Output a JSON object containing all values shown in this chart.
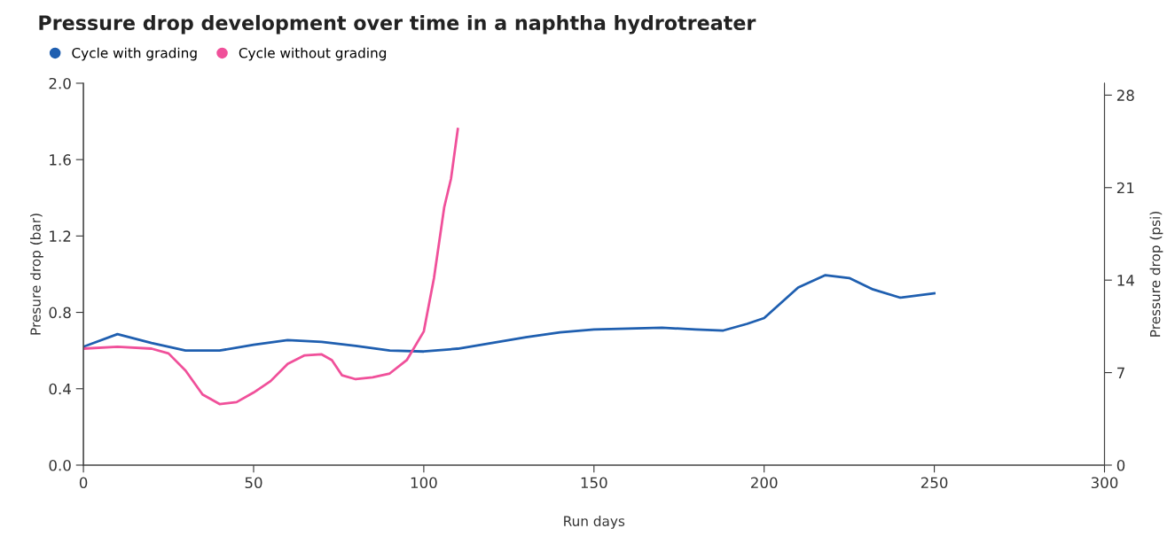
{
  "chart_data": {
    "type": "line",
    "title": "Pressure drop development over time in a naphtha hydrotreater",
    "xlabel": "Run days",
    "ylabel": "Presure drop (bar)",
    "y2label": "Pressure drop (psi)",
    "xlim": [
      0,
      300
    ],
    "xticks": [
      0,
      50,
      100,
      150,
      200,
      250,
      300
    ],
    "ylim": [
      0,
      2.0
    ],
    "yticks": [
      {
        "value": 0,
        "label": "0.0"
      },
      {
        "value": 0.4,
        "label": "0.4"
      },
      {
        "value": 0.8,
        "label": "0.8"
      },
      {
        "value": 1.2,
        "label": "1.2"
      },
      {
        "value": 1.6,
        "label": "1.6"
      },
      {
        "value": 2.0,
        "label": "2.0"
      }
    ],
    "y2lim": [
      0,
      28.9
    ],
    "y2ticks": [
      0,
      7,
      14,
      21,
      28
    ],
    "grid": false,
    "legend": "top left",
    "marker": "none",
    "line_style": "solid",
    "series": [
      {
        "name": "Cycle with grading",
        "color": "#1f5fb0",
        "x": [
          0,
          10,
          20,
          30,
          40,
          50,
          60,
          70,
          80,
          90,
          100,
          110,
          120,
          130,
          140,
          150,
          160,
          170,
          180,
          188,
          195,
          200,
          210,
          218,
          225,
          232,
          240,
          250
        ],
        "values": [
          0.62,
          0.686,
          0.64,
          0.6,
          0.6,
          0.63,
          0.655,
          0.645,
          0.625,
          0.6,
          0.595,
          0.61,
          0.64,
          0.67,
          0.695,
          0.71,
          0.715,
          0.72,
          0.71,
          0.705,
          0.74,
          0.77,
          0.93,
          0.995,
          0.98,
          0.92,
          0.877,
          0.9
        ]
      },
      {
        "name": "Cycle without grading",
        "color": "#f0509a",
        "x": [
          0,
          10,
          20,
          25,
          30,
          35,
          40,
          45,
          50,
          55,
          60,
          65,
          70,
          73,
          76,
          80,
          85,
          90,
          95,
          100,
          103,
          106,
          108,
          110
        ],
        "values": [
          0.61,
          0.62,
          0.61,
          0.585,
          0.495,
          0.37,
          0.32,
          0.33,
          0.38,
          0.44,
          0.53,
          0.575,
          0.58,
          0.55,
          0.47,
          0.45,
          0.46,
          0.48,
          0.55,
          0.7,
          0.98,
          1.35,
          1.5,
          1.76
        ]
      }
    ]
  }
}
